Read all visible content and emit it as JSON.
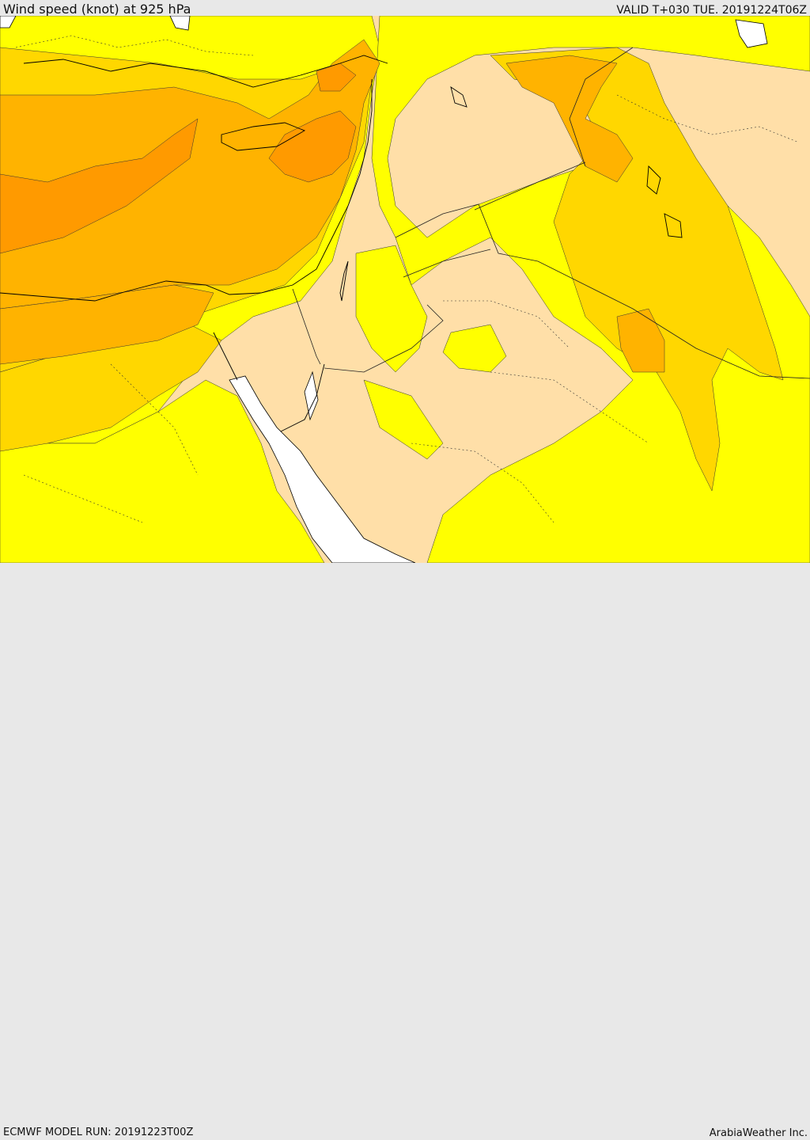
{
  "header": {
    "title": "Wind speed (knot) at 925 hPa",
    "valid": "VALID T+030 TUE. 20191224T06Z"
  },
  "footer": {
    "model_run": "ECMWF MODEL RUN: 20191223T00Z",
    "credit": "ArabiaWeather Inc."
  },
  "colors": {
    "calm": "#ffdfa8",
    "light": "#ffff00",
    "moderate": "#ffd700",
    "fresh": "#ffb300",
    "strong": "#ff9a00",
    "water": "#ffffff",
    "coast": "#000000"
  }
}
